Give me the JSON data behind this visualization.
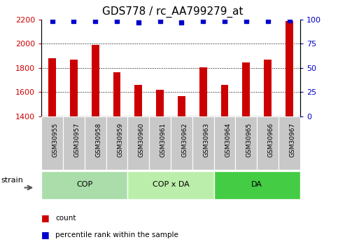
{
  "title": "GDS778 / rc_AA799279_at",
  "categories": [
    "GSM30955",
    "GSM30957",
    "GSM30958",
    "GSM30959",
    "GSM30960",
    "GSM30961",
    "GSM30962",
    "GSM30963",
    "GSM30964",
    "GSM30965",
    "GSM30966",
    "GSM30967"
  ],
  "bar_values": [
    1880,
    1870,
    1990,
    1760,
    1660,
    1620,
    1565,
    1805,
    1660,
    1845,
    1865,
    2185
  ],
  "percentile_values": [
    98,
    98,
    98,
    98,
    97,
    98,
    97,
    98,
    98,
    98,
    98,
    99
  ],
  "bar_color": "#cc0000",
  "dot_color": "#0000cc",
  "ylim_left": [
    1400,
    2200
  ],
  "ylim_right": [
    0,
    100
  ],
  "yticks_left": [
    1400,
    1600,
    1800,
    2000,
    2200
  ],
  "yticks_right": [
    0,
    25,
    50,
    75,
    100
  ],
  "group_labels": [
    "COP",
    "COP x DA",
    "DA"
  ],
  "group_ranges": [
    [
      0,
      3
    ],
    [
      4,
      7
    ],
    [
      8,
      11
    ]
  ],
  "group_colors": [
    "#aaddaa",
    "#bbeeaa",
    "#44cc44"
  ],
  "strain_label": "strain",
  "legend_items": [
    {
      "label": "count",
      "color": "#cc0000"
    },
    {
      "label": "percentile rank within the sample",
      "color": "#0000cc"
    }
  ],
  "background_color": "#ffffff",
  "tick_bg_color": "#c8c8c8",
  "grid_color": "#000000",
  "title_fontsize": 11,
  "axis_label_color_left": "#cc0000",
  "axis_label_color_right": "#0000cc",
  "bar_width": 0.35
}
